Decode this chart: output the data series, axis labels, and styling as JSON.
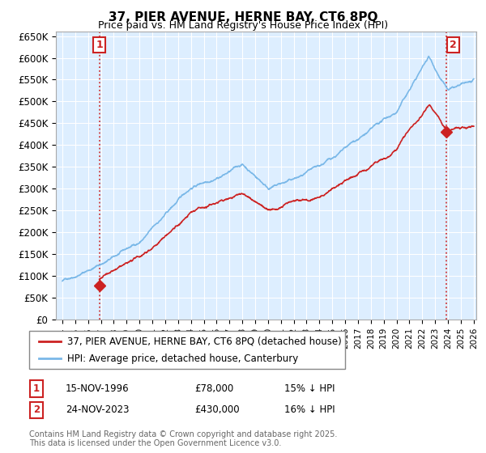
{
  "title": "37, PIER AVENUE, HERNE BAY, CT6 8PQ",
  "subtitle": "Price paid vs. HM Land Registry's House Price Index (HPI)",
  "ylim": [
    0,
    660000
  ],
  "yticks": [
    0,
    50000,
    100000,
    150000,
    200000,
    250000,
    300000,
    350000,
    400000,
    450000,
    500000,
    550000,
    600000,
    650000
  ],
  "ytick_labels": [
    "£0",
    "£50K",
    "£100K",
    "£150K",
    "£200K",
    "£250K",
    "£300K",
    "£350K",
    "£400K",
    "£450K",
    "£500K",
    "£550K",
    "£600K",
    "£650K"
  ],
  "hpi_color": "#7ab8e8",
  "price_color": "#cc2222",
  "annotation_border_color": "#cc2222",
  "background_color": "#ffffff",
  "chart_bg_color": "#ddeeff",
  "grid_color": "#ffffff",
  "purchase1_date": 1996.88,
  "purchase1_price": 78000,
  "purchase1_label": "1",
  "purchase1_year_label": "15-NOV-1996",
  "purchase1_price_label": "£78,000",
  "purchase1_hpi_label": "15% ↓ HPI",
  "purchase2_date": 2023.9,
  "purchase2_price": 430000,
  "purchase2_label": "2",
  "purchase2_year_label": "24-NOV-2023",
  "purchase2_price_label": "£430,000",
  "purchase2_hpi_label": "16% ↓ HPI",
  "legend_line1": "37, PIER AVENUE, HERNE BAY, CT6 8PQ (detached house)",
  "legend_line2": "HPI: Average price, detached house, Canterbury",
  "footer": "Contains HM Land Registry data © Crown copyright and database right 2025.\nThis data is licensed under the Open Government Licence v3.0.",
  "xlim_start": 1993.5,
  "xlim_end": 2026.2
}
